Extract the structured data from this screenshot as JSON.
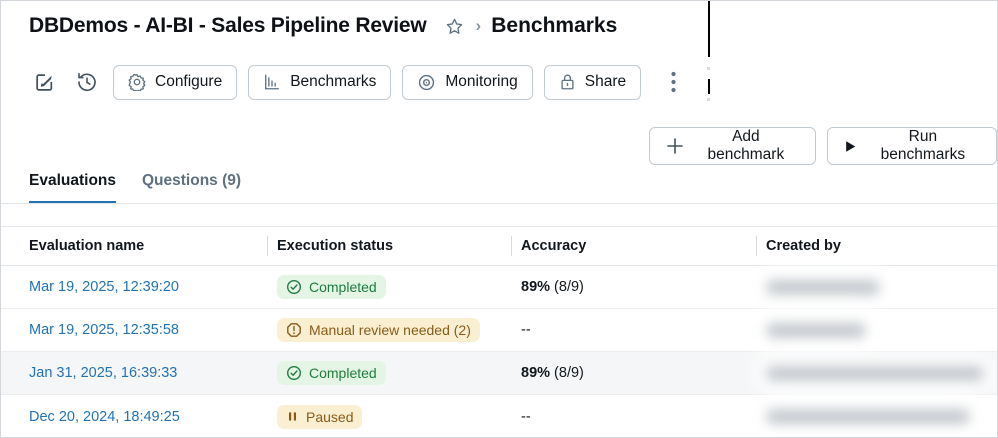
{
  "header": {
    "title": "DBDemos - AI-BI - Sales Pipeline Review",
    "breadcrumb_separator": "›",
    "breadcrumb_current": "Benchmarks"
  },
  "toolbar": {
    "buttons": [
      {
        "label": "Configure",
        "icon": "gear-icon"
      },
      {
        "label": "Benchmarks",
        "icon": "bar-chart-icon"
      },
      {
        "label": "Monitoring",
        "icon": "eye-icon"
      },
      {
        "label": "Share",
        "icon": "lock-icon"
      }
    ],
    "icon_only": [
      "edit-icon",
      "history-icon",
      "kebab-menu-icon"
    ]
  },
  "actions": {
    "add_benchmark_label": "Add benchmark",
    "run_benchmarks_label": "Run benchmarks"
  },
  "tabs": [
    {
      "label": "Evaluations",
      "active": true
    },
    {
      "label": "Questions (9)",
      "active": false
    }
  ],
  "table": {
    "columns": [
      "Evaluation name",
      "Execution status",
      "Accuracy",
      "Created by"
    ],
    "rows": [
      {
        "name": "Mar 19, 2025, 12:39:20",
        "status": {
          "label": "Completed",
          "type": "success",
          "icon": "check-circle-icon"
        },
        "accuracy": {
          "strong": "89%",
          "rest": " (8/9)"
        },
        "created_by_redacted": true,
        "blur_width": 114,
        "highlighted": false
      },
      {
        "name": "Mar 19, 2025, 12:35:58",
        "status": {
          "label": "Manual review needed (2)",
          "type": "warning",
          "icon": "alert-octagon-icon"
        },
        "accuracy": {
          "strong": "",
          "rest": "--"
        },
        "created_by_redacted": true,
        "blur_width": 100,
        "highlighted": false
      },
      {
        "name": "Jan 31, 2025, 16:39:33",
        "status": {
          "label": "Completed",
          "type": "success",
          "icon": "check-circle-icon"
        },
        "accuracy": {
          "strong": "89%",
          "rest": " (8/9)"
        },
        "created_by_redacted": true,
        "blur_width": 218,
        "highlighted": true
      },
      {
        "name": "Dec 20, 2024, 18:49:25",
        "status": {
          "label": "Paused",
          "type": "warning",
          "icon": "pause-icon"
        },
        "accuracy": {
          "strong": "",
          "rest": "--"
        },
        "created_by_redacted": true,
        "blur_width": 204,
        "highlighted": false
      }
    ]
  },
  "colors": {
    "link_blue": "#2272B4",
    "accent_tab_underline": "#2272B4",
    "success_bg": "#E4F5E6",
    "success_text": "#1E7D3D",
    "warning_bg": "#FAF0D1",
    "warning_text": "#8A5A1B",
    "icon_slate": "#5F7281"
  }
}
